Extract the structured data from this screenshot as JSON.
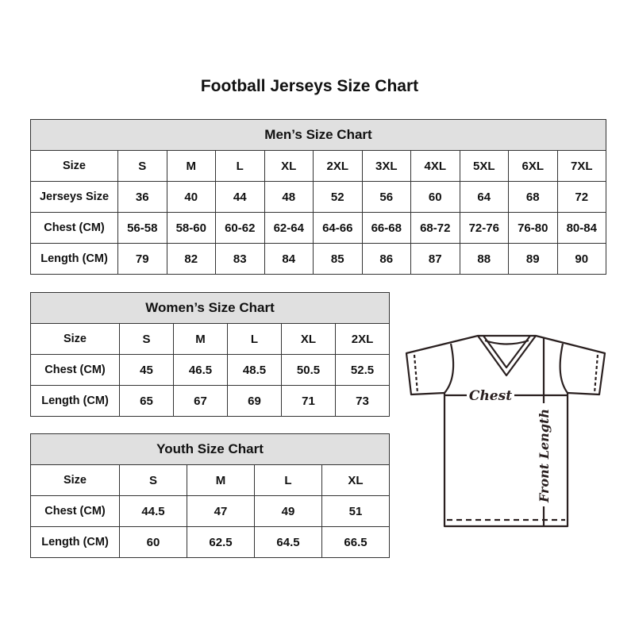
{
  "title": "Football Jerseys Size Chart",
  "men": {
    "title": "Men’s Size Chart",
    "rows": [
      {
        "label": "Size",
        "values": [
          "S",
          "M",
          "L",
          "XL",
          "2XL",
          "3XL",
          "4XL",
          "5XL",
          "6XL",
          "7XL"
        ]
      },
      {
        "label": "Jerseys Size",
        "values": [
          "36",
          "40",
          "44",
          "48",
          "52",
          "56",
          "60",
          "64",
          "68",
          "72"
        ]
      },
      {
        "label": "Chest (CM)",
        "values": [
          "56-58",
          "58-60",
          "60-62",
          "62-64",
          "64-66",
          "66-68",
          "68-72",
          "72-76",
          "76-80",
          "80-84"
        ]
      },
      {
        "label": "Length (CM)",
        "values": [
          "79",
          "82",
          "83",
          "84",
          "85",
          "86",
          "87",
          "88",
          "89",
          "90"
        ]
      }
    ]
  },
  "women": {
    "title": "Women’s Size Chart",
    "rows": [
      {
        "label": "Size",
        "values": [
          "S",
          "M",
          "L",
          "XL",
          "2XL"
        ]
      },
      {
        "label": "Chest (CM)",
        "values": [
          "45",
          "46.5",
          "48.5",
          "50.5",
          "52.5"
        ]
      },
      {
        "label": "Length (CM)",
        "values": [
          "65",
          "67",
          "69",
          "71",
          "73"
        ]
      }
    ]
  },
  "youth": {
    "title": "Youth Size Chart",
    "rows": [
      {
        "label": "Size",
        "values": [
          "S",
          "M",
          "L",
          "XL"
        ]
      },
      {
        "label": "Chest (CM)",
        "values": [
          "44.5",
          "47",
          "49",
          "51"
        ]
      },
      {
        "label": "Length (CM)",
        "values": [
          "60",
          "62.5",
          "64.5",
          "66.5"
        ]
      }
    ]
  },
  "diagram": {
    "chest_label": "Chest",
    "length_label": "Front Length"
  },
  "colors": {
    "header_bg": "#e0e0e0",
    "border": "#333333"
  }
}
